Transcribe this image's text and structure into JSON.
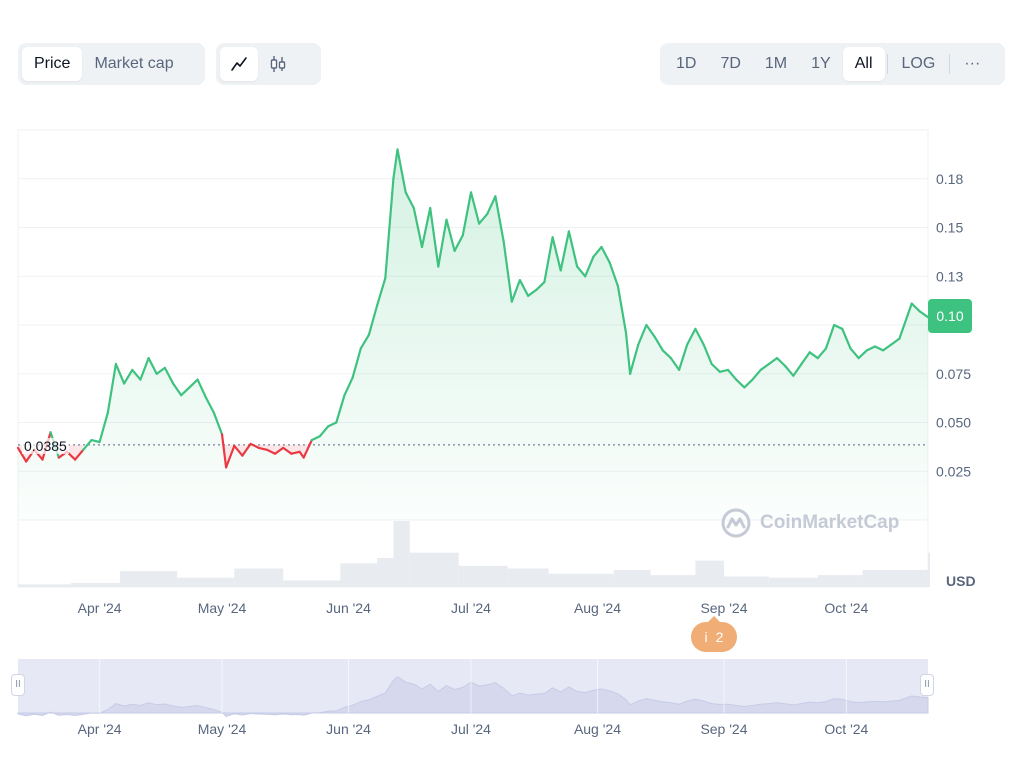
{
  "toolbar": {
    "metric_tabs": [
      {
        "label": "Price",
        "active": true
      },
      {
        "label": "Market cap",
        "active": false
      }
    ],
    "chart_style": [
      {
        "icon": "line-chart-icon",
        "active": true
      },
      {
        "icon": "candlestick-icon",
        "active": false
      }
    ],
    "ranges": [
      {
        "label": "1D",
        "active": false
      },
      {
        "label": "7D",
        "active": false
      },
      {
        "label": "1M",
        "active": false
      },
      {
        "label": "1Y",
        "active": false
      },
      {
        "label": "All",
        "active": true
      }
    ],
    "log_label": "LOG",
    "more_label": "···"
  },
  "current_price_label": "0.10",
  "base_price_label": "0.0385",
  "currency_label": "USD",
  "event_marker": {
    "icon": "i",
    "count": "2"
  },
  "watermark": "CoinMarketCap",
  "colors": {
    "up": "#3ec27f",
    "down": "#ea3943",
    "grid": "#eff2f5",
    "volume": "#e8ebf0",
    "navigator": "#e6e8f5",
    "event": "#f0ad76"
  },
  "chart_data": {
    "type": "line",
    "title": "",
    "xlabel": "",
    "ylabel": "",
    "x_range": [
      "2024-03-12",
      "2024-10-21"
    ],
    "ylim": [
      0,
      0.2
    ],
    "y_ticks": [
      0.025,
      0.05,
      0.075,
      0.1,
      0.125,
      0.15,
      0.175
    ],
    "y_tick_labels": [
      "0.025",
      "0.050",
      "0.075",
      "",
      "0.13",
      "0.15",
      "0.18"
    ],
    "x_tick_labels": [
      "Apr '24",
      "May '24",
      "Jun '24",
      "Jul '24",
      "Aug '24",
      "Sep '24",
      "Oct '24"
    ],
    "x_tick_dates": [
      "2024-04-01",
      "2024-05-01",
      "2024-06-01",
      "2024-07-01",
      "2024-08-01",
      "2024-09-01",
      "2024-10-01"
    ],
    "navigator_tick_labels": [
      "Apr '24",
      "May '24",
      "Jun '24",
      "Jul '24",
      "Aug '24",
      "Sep '24",
      "Oct '24"
    ],
    "baseline": 0.0385,
    "series": [
      {
        "values": [
          [
            "2024-03-12",
            0.037
          ],
          [
            "2024-03-14",
            0.03
          ],
          [
            "2024-03-16",
            0.036
          ],
          [
            "2024-03-18",
            0.031
          ],
          [
            "2024-03-20",
            0.045
          ],
          [
            "2024-03-22",
            0.032
          ],
          [
            "2024-03-24",
            0.035
          ],
          [
            "2024-03-26",
            0.031
          ],
          [
            "2024-03-28",
            0.036
          ],
          [
            "2024-03-30",
            0.041
          ],
          [
            "2024-04-01",
            0.04
          ],
          [
            "2024-04-03",
            0.055
          ],
          [
            "2024-04-05",
            0.08
          ],
          [
            "2024-04-07",
            0.07
          ],
          [
            "2024-04-09",
            0.077
          ],
          [
            "2024-04-11",
            0.072
          ],
          [
            "2024-04-13",
            0.083
          ],
          [
            "2024-04-15",
            0.075
          ],
          [
            "2024-04-17",
            0.078
          ],
          [
            "2024-04-19",
            0.07
          ],
          [
            "2024-04-21",
            0.064
          ],
          [
            "2024-04-23",
            0.068
          ],
          [
            "2024-04-25",
            0.072
          ],
          [
            "2024-04-27",
            0.063
          ],
          [
            "2024-04-29",
            0.055
          ],
          [
            "2024-05-01",
            0.044
          ],
          [
            "2024-05-02",
            0.027
          ],
          [
            "2024-05-04",
            0.038
          ],
          [
            "2024-05-06",
            0.033
          ],
          [
            "2024-05-08",
            0.039
          ],
          [
            "2024-05-10",
            0.037
          ],
          [
            "2024-05-12",
            0.036
          ],
          [
            "2024-05-14",
            0.034
          ],
          [
            "2024-05-16",
            0.037
          ],
          [
            "2024-05-18",
            0.034
          ],
          [
            "2024-05-20",
            0.035
          ],
          [
            "2024-05-21",
            0.032
          ],
          [
            "2024-05-23",
            0.041
          ],
          [
            "2024-05-25",
            0.043
          ],
          [
            "2024-05-27",
            0.048
          ],
          [
            "2024-05-29",
            0.05
          ],
          [
            "2024-05-31",
            0.064
          ],
          [
            "2024-06-02",
            0.073
          ],
          [
            "2024-06-04",
            0.088
          ],
          [
            "2024-06-06",
            0.095
          ],
          [
            "2024-06-08",
            0.11
          ],
          [
            "2024-06-10",
            0.124
          ],
          [
            "2024-06-12",
            0.175
          ],
          [
            "2024-06-13",
            0.19
          ],
          [
            "2024-06-15",
            0.168
          ],
          [
            "2024-06-17",
            0.16
          ],
          [
            "2024-06-19",
            0.14
          ],
          [
            "2024-06-21",
            0.16
          ],
          [
            "2024-06-23",
            0.13
          ],
          [
            "2024-06-25",
            0.154
          ],
          [
            "2024-06-27",
            0.138
          ],
          [
            "2024-06-29",
            0.146
          ],
          [
            "2024-07-01",
            0.168
          ],
          [
            "2024-07-03",
            0.152
          ],
          [
            "2024-07-05",
            0.157
          ],
          [
            "2024-07-07",
            0.166
          ],
          [
            "2024-07-09",
            0.143
          ],
          [
            "2024-07-11",
            0.112
          ],
          [
            "2024-07-13",
            0.123
          ],
          [
            "2024-07-15",
            0.115
          ],
          [
            "2024-07-17",
            0.118
          ],
          [
            "2024-07-19",
            0.122
          ],
          [
            "2024-07-21",
            0.145
          ],
          [
            "2024-07-23",
            0.128
          ],
          [
            "2024-07-25",
            0.148
          ],
          [
            "2024-07-27",
            0.13
          ],
          [
            "2024-07-29",
            0.125
          ],
          [
            "2024-07-31",
            0.135
          ],
          [
            "2024-08-02",
            0.14
          ],
          [
            "2024-08-04",
            0.132
          ],
          [
            "2024-08-06",
            0.12
          ],
          [
            "2024-08-08",
            0.096
          ],
          [
            "2024-08-09",
            0.075
          ],
          [
            "2024-08-11",
            0.09
          ],
          [
            "2024-08-13",
            0.1
          ],
          [
            "2024-08-15",
            0.094
          ],
          [
            "2024-08-17",
            0.087
          ],
          [
            "2024-08-19",
            0.083
          ],
          [
            "2024-08-21",
            0.077
          ],
          [
            "2024-08-23",
            0.09
          ],
          [
            "2024-08-25",
            0.098
          ],
          [
            "2024-08-27",
            0.09
          ],
          [
            "2024-08-29",
            0.08
          ],
          [
            "2024-08-31",
            0.076
          ],
          [
            "2024-09-02",
            0.077
          ],
          [
            "2024-09-04",
            0.072
          ],
          [
            "2024-09-06",
            0.068
          ],
          [
            "2024-09-08",
            0.072
          ],
          [
            "2024-09-10",
            0.077
          ],
          [
            "2024-09-12",
            0.08
          ],
          [
            "2024-09-14",
            0.083
          ],
          [
            "2024-09-16",
            0.079
          ],
          [
            "2024-09-18",
            0.074
          ],
          [
            "2024-09-20",
            0.08
          ],
          [
            "2024-09-22",
            0.086
          ],
          [
            "2024-09-24",
            0.083
          ],
          [
            "2024-09-26",
            0.088
          ],
          [
            "2024-09-28",
            0.1
          ],
          [
            "2024-09-30",
            0.098
          ],
          [
            "2024-10-02",
            0.088
          ],
          [
            "2024-10-04",
            0.083
          ],
          [
            "2024-10-06",
            0.087
          ],
          [
            "2024-10-08",
            0.089
          ],
          [
            "2024-10-10",
            0.087
          ],
          [
            "2024-10-12",
            0.09
          ],
          [
            "2024-10-14",
            0.093
          ],
          [
            "2024-10-17",
            0.111
          ],
          [
            "2024-10-19",
            0.107
          ],
          [
            "2024-10-21",
            0.104
          ]
        ]
      }
    ],
    "volume": {
      "dates": [
        "2024-03-12",
        "2024-03-25",
        "2024-04-06",
        "2024-04-20",
        "2024-05-04",
        "2024-05-16",
        "2024-05-30",
        "2024-06-08",
        "2024-06-12",
        "2024-06-16",
        "2024-06-28",
        "2024-07-10",
        "2024-07-20",
        "2024-08-05",
        "2024-08-14",
        "2024-08-25",
        "2024-09-01",
        "2024-09-12",
        "2024-09-24",
        "2024-10-05",
        "2024-10-21"
      ],
      "values": [
        0.2,
        0.3,
        1.2,
        0.7,
        1.4,
        0.5,
        1.8,
        2.2,
        5.0,
        2.6,
        1.6,
        1.4,
        1.0,
        1.3,
        0.9,
        2.0,
        0.8,
        0.7,
        0.9,
        1.3,
        2.6
      ]
    }
  }
}
